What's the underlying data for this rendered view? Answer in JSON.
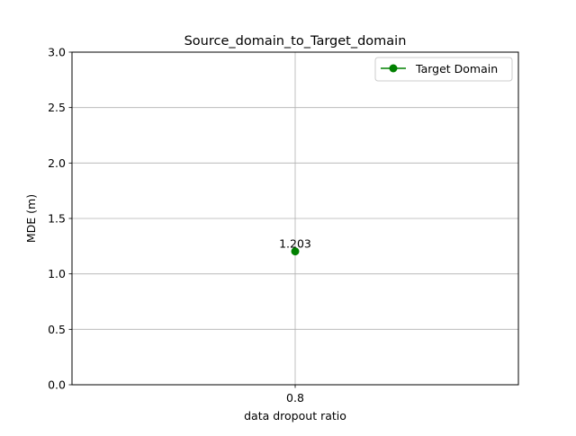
{
  "chart_data": {
    "type": "line",
    "title": "Source_domain_to_Target_domain",
    "xlabel": "data dropout ratio",
    "ylabel": "MDE (m)",
    "x_categories": [
      "0.8"
    ],
    "ylim": [
      0,
      3
    ],
    "y_ticks": [
      "0.0",
      "0.5",
      "1.0",
      "1.5",
      "2.0",
      "2.5",
      "3.0"
    ],
    "grid": true,
    "legend_position": "upper right",
    "series": [
      {
        "name": "Target Domain",
        "color": "#008000",
        "marker": "circle",
        "x": [
          "0.8"
        ],
        "values": [
          1.203
        ],
        "point_labels": [
          "1.203"
        ]
      }
    ]
  }
}
